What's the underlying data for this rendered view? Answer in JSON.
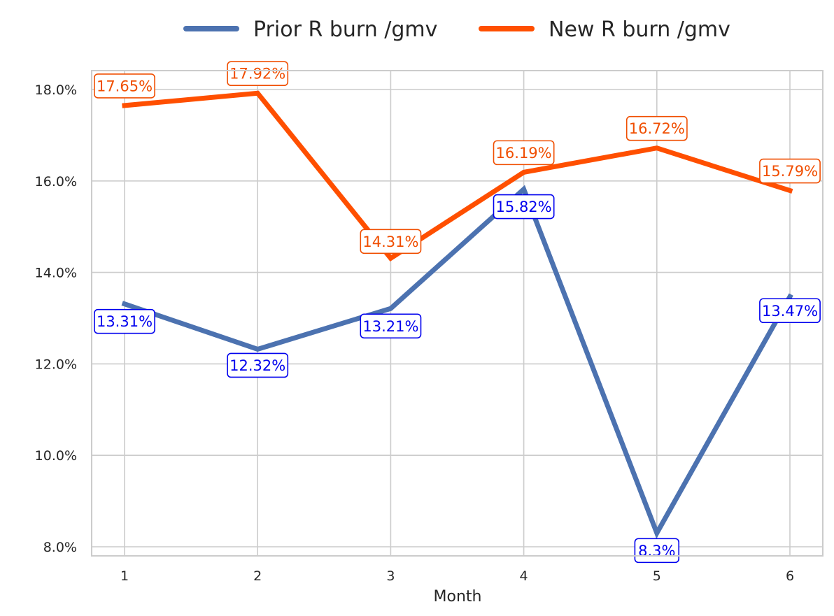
{
  "chart_data": {
    "type": "line",
    "xlabel": "Month",
    "ylabel": "",
    "x": [
      1,
      2,
      3,
      4,
      5,
      6
    ],
    "ylim": [
      7.8,
      18.4
    ],
    "yticks": [
      "8.0%",
      "10.0%",
      "12.0%",
      "14.0%",
      "16.0%",
      "18.0%"
    ],
    "grid": true,
    "legend": "top-center",
    "series": [
      {
        "name": "Prior R burn /gmv",
        "color": "#4c72b0",
        "label_color": "#0000ee",
        "values": [
          13.31,
          12.32,
          13.21,
          15.82,
          8.3,
          13.47
        ],
        "labels": [
          "13.31%",
          "12.32%",
          "13.21%",
          "15.82%",
          "8.3%",
          "13.47%"
        ]
      },
      {
        "name": "New R burn /gmv",
        "color": "#ff4f00",
        "label_color": "#f04e00",
        "values": [
          17.65,
          17.92,
          14.31,
          16.19,
          16.72,
          15.79
        ],
        "labels": [
          "17.65%",
          "17.92%",
          "14.31%",
          "16.19%",
          "16.72%",
          "15.79%"
        ]
      }
    ]
  }
}
